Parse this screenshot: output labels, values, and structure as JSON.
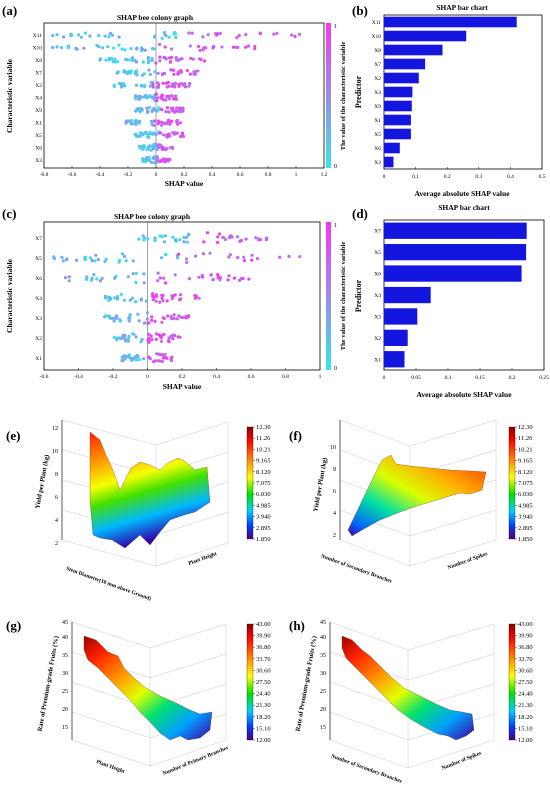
{
  "panels": {
    "a": {
      "tag": "(a)",
      "title": "SHAP bee colony graph",
      "xlabel": "SHAP value",
      "ylabel": "Characteristic variable",
      "cbar_label": "The value of the characteristic variable",
      "cbar_top": "1",
      "cbar_bottom": "0"
    },
    "b": {
      "tag": "(b)",
      "title": "SHAP bar chart",
      "xlabel": "Average absolute SHAP value",
      "ylabel": "Predictor"
    },
    "c": {
      "tag": "(c)",
      "title": "SHAP bee colony graph",
      "xlabel": "SHAP value",
      "ylabel": "Characteristic variable",
      "cbar_label": "The value of the characteristic variable",
      "cbar_top": "1",
      "cbar_bottom": "0"
    },
    "d": {
      "tag": "(d)",
      "title": "SHAP bar chart",
      "xlabel": "Average absolute SHAP value",
      "ylabel": "Predictor"
    },
    "e": {
      "tag": "(e)",
      "zlabel": "Yield per Plant (kg)",
      "xlabel": "Stem Diameter(10 mm above Ground)",
      "ylabel": "Plant Height"
    },
    "f": {
      "tag": "(f)",
      "zlabel": "Yield per Plant (kg)",
      "xlabel": "Number of Secondary Branches",
      "ylabel": "Number of Spikes"
    },
    "g": {
      "tag": "(g)",
      "zlabel": "Rate of Premium-grade Fruits (%)",
      "xlabel": "Plant Height",
      "ylabel": "Number of Primary Branches"
    },
    "h": {
      "tag": "(h)",
      "zlabel": "Rate of Premium-grade Fruits (%)",
      "xlabel": "Number of Secondary Branches",
      "ylabel": "Number of Spikes"
    }
  },
  "colors": {
    "bar": "#1515e0",
    "cbar_top": "#ff33ee",
    "cbar_bottom": "#33e6ee"
  },
  "colorbar_ticks_ef": [
    "12.30",
    "11.26",
    "10.21",
    "9.165",
    "8.120",
    "7.075",
    "6.030",
    "4.985",
    "3.940",
    "2.895",
    "1.850"
  ],
  "colorbar_ticks_gh": [
    "43.00",
    "39.90",
    "36.80",
    "33.70",
    "30.60",
    "27.50",
    "24.40",
    "21.30",
    "18.20",
    "15.10",
    "12.00"
  ],
  "chart_data": [
    {
      "id": "a",
      "type": "scatter",
      "title": "SHAP bee colony graph",
      "xlabel": "SHAP value",
      "ylabel": "Characteristic variable",
      "categories": [
        "X11",
        "X10",
        "X8",
        "X7",
        "X2",
        "X4",
        "X9",
        "X1",
        "X5",
        "X6",
        "X3"
      ],
      "xlim": [
        -0.8,
        1.2
      ],
      "xticks": [
        "-0.8",
        "-0.6",
        "-0.4",
        "-0.2",
        "0",
        "0.2",
        "0.4",
        "0.6",
        "0.8",
        "1",
        "1.2"
      ],
      "ranges": [
        [
          -0.75,
          1.05
        ],
        [
          -0.75,
          0.72
        ],
        [
          -0.4,
          0.35
        ],
        [
          -0.28,
          0.3
        ],
        [
          -0.3,
          0.25
        ],
        [
          -0.15,
          0.15
        ],
        [
          -0.15,
          0.2
        ],
        [
          -0.22,
          0.18
        ],
        [
          -0.15,
          0.2
        ],
        [
          -0.12,
          0.12
        ],
        [
          -0.1,
          0.1
        ]
      ]
    },
    {
      "id": "b",
      "type": "bar",
      "title": "SHAP bar chart",
      "xlabel": "Average absolute SHAP value",
      "ylabel": "Predictor",
      "categories": [
        "X11",
        "X10",
        "X8",
        "X7",
        "X2",
        "X4",
        "X9",
        "X1",
        "X5",
        "X6",
        "X3"
      ],
      "values": [
        0.42,
        0.26,
        0.185,
        0.13,
        0.11,
        0.09,
        0.088,
        0.085,
        0.085,
        0.05,
        0.03
      ],
      "xlim": [
        0,
        0.5
      ],
      "xticks": [
        "0",
        "0.1",
        "0.2",
        "0.3",
        "0.4",
        "0.5"
      ]
    },
    {
      "id": "c",
      "type": "scatter",
      "title": "SHAP bee colony graph",
      "xlabel": "SHAP value",
      "ylabel": "Characteristic variable",
      "categories": [
        "X7",
        "X5",
        "X6",
        "X4",
        "X3",
        "X2",
        "X1"
      ],
      "xlim": [
        -0.6,
        1.0
      ],
      "xticks": [
        "-0.6",
        "-0.4",
        "-0.2",
        "0",
        "0.2",
        "0.4",
        "0.6",
        "0.8",
        "1"
      ],
      "ranges": [
        [
          -0.05,
          0.7
        ],
        [
          -0.55,
          0.9
        ],
        [
          -0.5,
          0.6
        ],
        [
          -0.25,
          0.3
        ],
        [
          -0.25,
          0.25
        ],
        [
          -0.2,
          0.2
        ],
        [
          -0.15,
          0.15
        ]
      ]
    },
    {
      "id": "d",
      "type": "bar",
      "title": "SHAP bar chart",
      "xlabel": "Average absolute SHAP value",
      "ylabel": "Predictor",
      "categories": [
        "X7",
        "X5",
        "X6",
        "X4",
        "X3",
        "X2",
        "X1"
      ],
      "values": [
        0.223,
        0.222,
        0.215,
        0.073,
        0.052,
        0.037,
        0.032
      ],
      "xlim": [
        0,
        0.25
      ],
      "xticks": [
        "0",
        "0.05",
        "0.1",
        "0.15",
        "0.2",
        "0.25"
      ]
    },
    {
      "id": "e",
      "type": "surface3d",
      "zlabel": "Yield per Plant (kg)",
      "zticks": [
        "2",
        "4",
        "6",
        "8",
        "10",
        "12"
      ],
      "colorbar": [
        1.85,
        12.3
      ]
    },
    {
      "id": "f",
      "type": "surface3d",
      "zlabel": "Yield per Plant (kg)",
      "zticks": [
        "2",
        "4",
        "6",
        "8",
        "10"
      ],
      "colorbar": [
        1.85,
        12.3
      ]
    },
    {
      "id": "g",
      "type": "surface3d",
      "zlabel": "Rate of Premium-grade Fruits (%)",
      "zticks": [
        "15",
        "20",
        "25",
        "30",
        "35",
        "40",
        "45"
      ],
      "colorbar": [
        12.0,
        43.0
      ]
    },
    {
      "id": "h",
      "type": "surface3d",
      "zlabel": "Rate of Premium-grade Fruits (%)",
      "zticks": [
        "15",
        "20",
        "25",
        "30",
        "35",
        "40",
        "45"
      ],
      "colorbar": [
        12.0,
        43.0
      ]
    }
  ]
}
